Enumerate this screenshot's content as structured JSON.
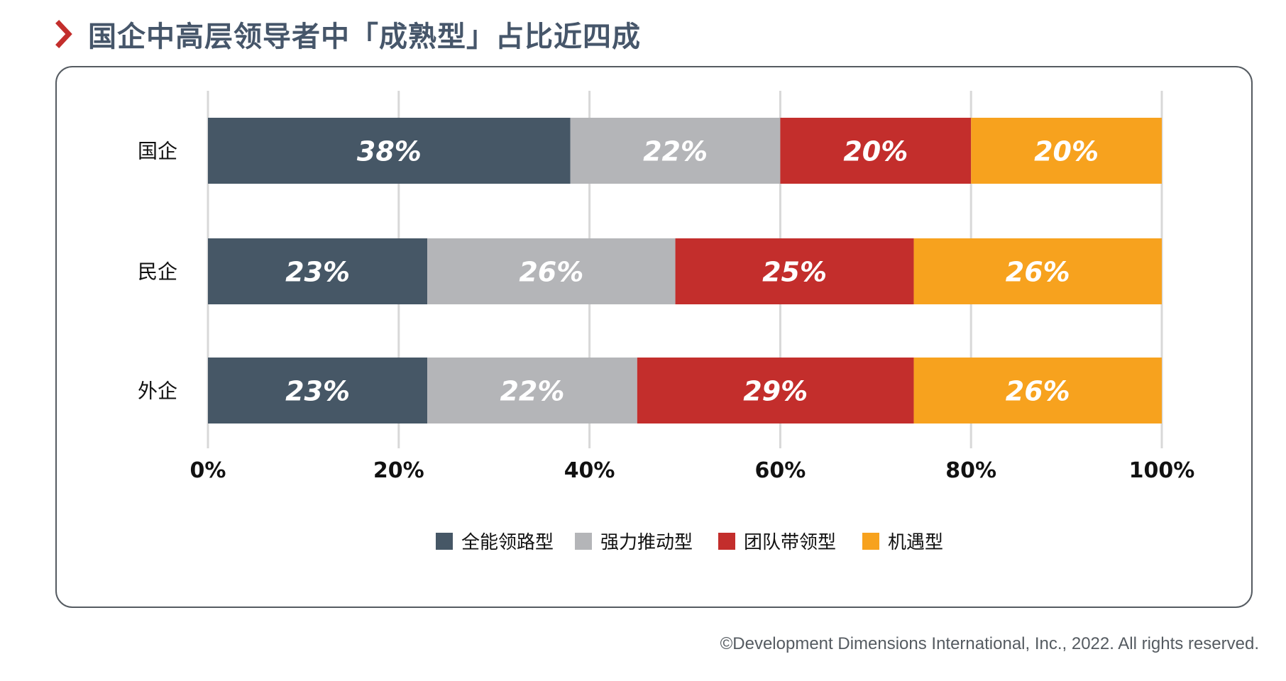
{
  "title": "国企中高层领导者中「成熟型」占比近四成",
  "copyright": "©Development Dimensions International, Inc., 2022. All rights reserved.",
  "chart_data": {
    "type": "bar",
    "orientation": "horizontal",
    "stacked": true,
    "categories": [
      "国企",
      "民企",
      "外企"
    ],
    "series": [
      {
        "name": "全能领路型",
        "color": "#465766",
        "values": [
          38,
          23,
          23
        ],
        "labels": [
          "38%",
          "23%",
          "23%"
        ]
      },
      {
        "name": "强力推动型",
        "color": "#b4b5b8",
        "values": [
          22,
          26,
          22
        ],
        "labels": [
          "22%",
          "26%",
          "22%"
        ]
      },
      {
        "name": "团队带领型",
        "color": "#c32e2c",
        "values": [
          20,
          25,
          29
        ],
        "labels": [
          "20%",
          "25%",
          "29%"
        ]
      },
      {
        "name": "机遇型",
        "color": "#f7a21e",
        "values": [
          20,
          26,
          26
        ],
        "labels": [
          "20%",
          "26%",
          "26%"
        ]
      }
    ],
    "xlim": [
      0,
      100
    ],
    "xticks": [
      "0%",
      "20%",
      "40%",
      "60%",
      "80%",
      "100%"
    ],
    "grid": true,
    "legend": "bottom-center"
  },
  "colors": {
    "accent": "#c32e2c",
    "title": "#46566a",
    "grid": "#d8d8d8"
  }
}
